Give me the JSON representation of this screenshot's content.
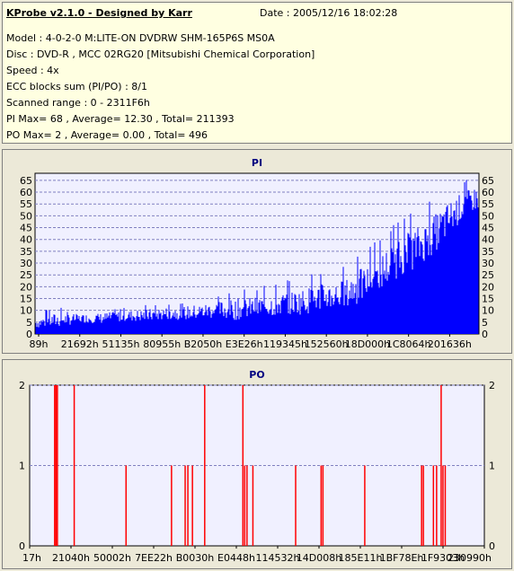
{
  "app": {
    "title": "KProbe v2.1.0 - Designed by Karr",
    "date_label": "Date : 2005/12/16 18:02:28"
  },
  "info": {
    "model": "Model : 4-0-2-0 M:LITE-ON DVDRW SHM-165P6S MS0A",
    "disc": "Disc : DVD-R , MCC 02RG20   [Mitsubishi Chemical Corporation]",
    "speed": "Speed : 4x",
    "ecc": "ECC blocks sum (PI/PO) : 8/1",
    "scanned": "Scanned range : 0 - 2311F6h",
    "pi_stats": "PI Max= 68 , Average= 12.30 , Total= 211393",
    "po_stats": "PO Max= 2 , Average= 0.00 , Total= 496"
  },
  "colors": {
    "pi_fill": "#0000ff",
    "po_bar": "#ff0000",
    "plot_bg": "#f0f0ff",
    "title_color": "#000080",
    "grid": "#8080c0"
  },
  "chart_data": [
    {
      "type": "area",
      "title": "PI",
      "xlabel": "",
      "ylabel": "",
      "x_ticks": [
        "89h",
        "21692h",
        "51135h",
        "80955h",
        "B2050h",
        "E3E26h",
        "119345h",
        "152560h",
        "18D000h",
        "1C8064h",
        "201636h"
      ],
      "y_ticks": [
        0,
        5,
        10,
        15,
        20,
        25,
        30,
        35,
        40,
        45,
        50,
        55,
        60,
        65
      ],
      "ylim": [
        0,
        68
      ],
      "grid": true,
      "envelope": {
        "position_fraction": [
          0.0,
          0.05,
          0.1,
          0.15,
          0.2,
          0.25,
          0.3,
          0.35,
          0.4,
          0.45,
          0.5,
          0.55,
          0.6,
          0.65,
          0.7,
          0.72,
          0.75,
          0.78,
          0.8,
          0.82,
          0.85,
          0.88,
          0.9,
          0.92,
          0.94,
          0.96,
          0.98,
          1.0
        ],
        "avg": [
          4,
          5,
          6,
          6,
          7,
          7,
          8,
          8,
          9,
          9,
          10,
          11,
          12,
          14,
          15,
          17,
          20,
          24,
          27,
          30,
          33,
          37,
          40,
          44,
          48,
          52,
          55,
          56
        ],
        "max": [
          9,
          12,
          10,
          11,
          12,
          13,
          14,
          15,
          17,
          19,
          20,
          22,
          24,
          27,
          29,
          33,
          36,
          42,
          45,
          48,
          52,
          55,
          58,
          61,
          64,
          65,
          66,
          68
        ]
      }
    },
    {
      "type": "bar",
      "title": "PO",
      "xlabel": "",
      "ylabel": "",
      "x_ticks": [
        "17h",
        "21040h",
        "50002h",
        "7EE22h",
        "B0030h",
        "E0448h",
        "114532h",
        "14D008h",
        "185E11h",
        "1BF78Eh",
        "1F9303h",
        "230990h"
      ],
      "y_ticks": [
        0,
        1,
        2
      ],
      "ylim": [
        0,
        2
      ],
      "grid": true,
      "spikes": [
        {
          "position_fraction": 0.055,
          "value": 2
        },
        {
          "position_fraction": 0.058,
          "value": 2
        },
        {
          "position_fraction": 0.061,
          "value": 2
        },
        {
          "position_fraction": 0.098,
          "value": 2
        },
        {
          "position_fraction": 0.212,
          "value": 1
        },
        {
          "position_fraction": 0.312,
          "value": 1
        },
        {
          "position_fraction": 0.342,
          "value": 1
        },
        {
          "position_fraction": 0.348,
          "value": 1
        },
        {
          "position_fraction": 0.358,
          "value": 1
        },
        {
          "position_fraction": 0.385,
          "value": 2
        },
        {
          "position_fraction": 0.469,
          "value": 2
        },
        {
          "position_fraction": 0.473,
          "value": 1
        },
        {
          "position_fraction": 0.478,
          "value": 1
        },
        {
          "position_fraction": 0.491,
          "value": 1
        },
        {
          "position_fraction": 0.585,
          "value": 1
        },
        {
          "position_fraction": 0.641,
          "value": 1
        },
        {
          "position_fraction": 0.645,
          "value": 1
        },
        {
          "position_fraction": 0.737,
          "value": 1
        },
        {
          "position_fraction": 0.862,
          "value": 1
        },
        {
          "position_fraction": 0.866,
          "value": 1
        },
        {
          "position_fraction": 0.888,
          "value": 1
        },
        {
          "position_fraction": 0.895,
          "value": 1
        },
        {
          "position_fraction": 0.905,
          "value": 2
        },
        {
          "position_fraction": 0.909,
          "value": 1
        },
        {
          "position_fraction": 0.914,
          "value": 1
        }
      ]
    }
  ]
}
